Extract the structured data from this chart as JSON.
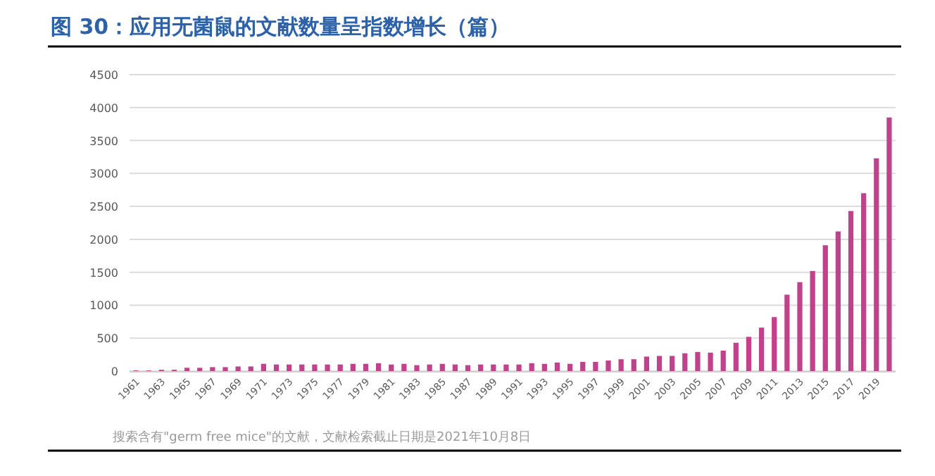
{
  "chart_data": {
    "type": "bar",
    "title": "图 30：应用无菌鼠的文献数量呈指数增长（篇）",
    "annotations": [
      "搜索含有\"germ free mice\"的文献，文献检索截止日期是2021年10月8日"
    ],
    "categories": [
      "1961",
      null,
      "1963",
      null,
      "1965",
      null,
      "1967",
      null,
      "1969",
      null,
      "1971",
      null,
      "1973",
      null,
      "1975",
      null,
      "1977",
      null,
      "1979",
      null,
      "1981",
      null,
      "1983",
      null,
      "1985",
      null,
      "1987",
      null,
      "1989",
      null,
      "1991",
      null,
      "1993",
      null,
      "1995",
      null,
      "1997",
      null,
      "1999",
      null,
      "2001",
      null,
      "2003",
      null,
      "2005",
      null,
      "2007",
      null,
      "2009",
      null,
      "2011",
      null,
      "2013",
      null,
      "2015",
      null,
      "2017",
      null,
      "2019",
      null
    ],
    "values": [
      10,
      10,
      20,
      20,
      50,
      50,
      60,
      60,
      70,
      70,
      110,
      100,
      100,
      100,
      100,
      100,
      100,
      110,
      110,
      120,
      100,
      110,
      90,
      100,
      110,
      100,
      90,
      100,
      100,
      100,
      100,
      120,
      110,
      130,
      110,
      140,
      140,
      160,
      180,
      180,
      220,
      230,
      230,
      270,
      290,
      280,
      310,
      430,
      520,
      660,
      820,
      1160,
      1350,
      1520,
      1910,
      2120,
      2430,
      2700,
      3230,
      3850
    ],
    "color": "#c2418c",
    "ylim": [
      0,
      4500
    ],
    "yticks": [
      0,
      500,
      1000,
      1500,
      2000,
      2500,
      3000,
      3500,
      4000,
      4500
    ],
    "grid": "y"
  }
}
